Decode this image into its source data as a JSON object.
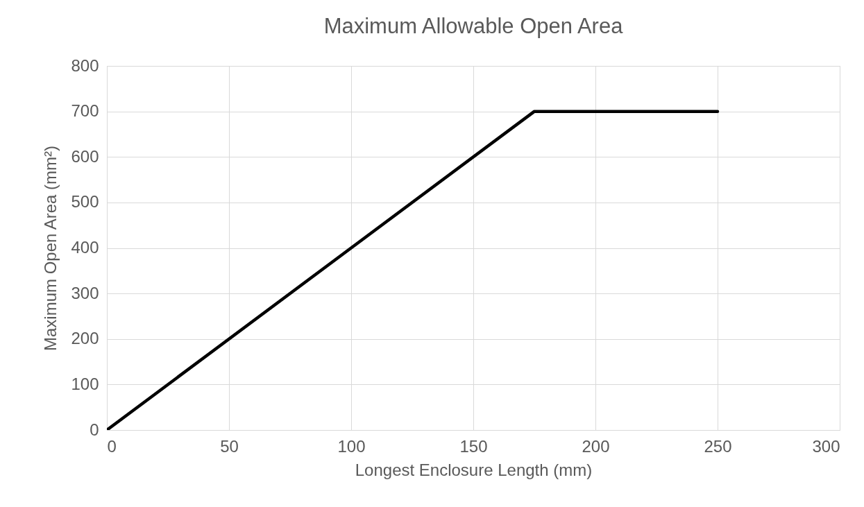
{
  "chart_data": {
    "type": "line",
    "title": "Maximum Allowable Open Area",
    "xlabel": "Longest Enclosure Length (mm)",
    "ylabel": "Maximum Open Area (mm²)",
    "x": [
      0,
      175,
      250
    ],
    "series": [
      {
        "color": "#000000",
        "values": [
          0,
          700,
          700
        ]
      }
    ],
    "xlim": [
      0,
      300
    ],
    "xticks": [
      0,
      50,
      100,
      150,
      200,
      250,
      300
    ],
    "ylim": [
      0,
      800
    ],
    "yticks": [
      0,
      100,
      200,
      300,
      400,
      500,
      600,
      700,
      800
    ],
    "grid": true,
    "line_style": "solid"
  }
}
